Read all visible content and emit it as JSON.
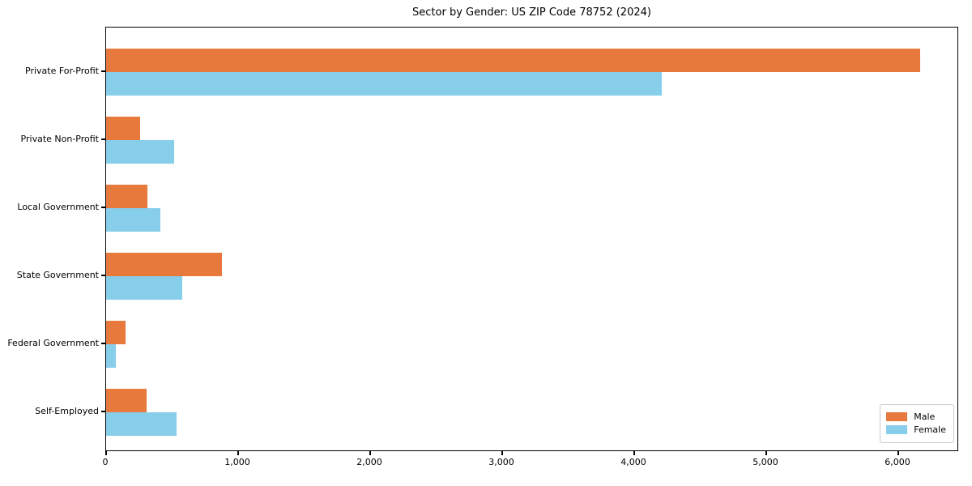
{
  "chart_data": {
    "type": "bar",
    "orientation": "horizontal",
    "title": "Sector by Gender: US ZIP Code 78752 (2024)",
    "categories": [
      "Private For-Profit",
      "Private Non-Profit",
      "Local Government",
      "State Government",
      "Federal Government",
      "Self-Employed"
    ],
    "series": [
      {
        "name": "Male",
        "color": "#e8793d",
        "values": [
          6165,
          260,
          313,
          877,
          147,
          307
        ]
      },
      {
        "name": "Female",
        "color": "#87ceeb",
        "values": [
          4210,
          515,
          410,
          577,
          74,
          533
        ]
      }
    ],
    "xlim": [
      0,
      6460
    ],
    "x_ticks": [
      {
        "value": 0,
        "label": "0"
      },
      {
        "value": 1000,
        "label": "1,000"
      },
      {
        "value": 2000,
        "label": "2,000"
      },
      {
        "value": 3000,
        "label": "3,000"
      },
      {
        "value": 4000,
        "label": "4,000"
      },
      {
        "value": 5000,
        "label": "5,000"
      },
      {
        "value": 6000,
        "label": "6,000"
      }
    ],
    "grid": false,
    "legend": {
      "position": "lower right"
    },
    "axis_color": "#000000",
    "background": "#ffffff"
  }
}
